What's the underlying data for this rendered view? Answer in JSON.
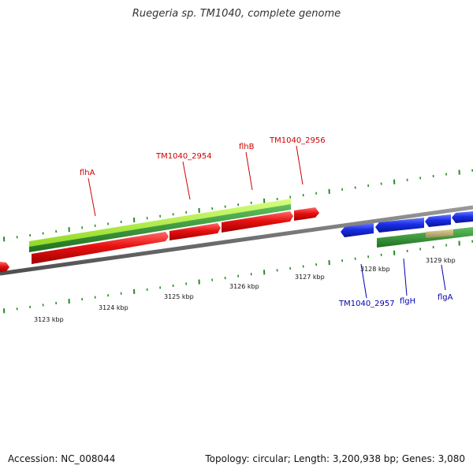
{
  "title": "Ruegeria sp. TM1040, complete genome",
  "footer": {
    "accession": "Accession: NC_008044",
    "summary": "Topology: circular; Length: 3,200,938 bp; Genes: 3,080"
  },
  "colors": {
    "forward_gene": "#e01010",
    "reverse_gene": "#1428e0",
    "cds_forward": "#33a033",
    "cds_reverse": "#2f8a2f",
    "cds_highlight": "#9ee040",
    "forward_label": "#cc0000",
    "reverse_label": "#0000b0",
    "backbone": "#8a8a8a",
    "tick": "#228b22",
    "tan_feature": "#b8a86a"
  },
  "ticks": [
    {
      "label": "3123 kbp"
    },
    {
      "label": "3124 kbp"
    },
    {
      "label": "3125 kbp"
    },
    {
      "label": "3126 kbp"
    },
    {
      "label": "3127 kbp"
    },
    {
      "label": "3128 kbp"
    },
    {
      "label": "3129 kbp"
    }
  ],
  "forward_labels": [
    {
      "text": "flhA"
    },
    {
      "text": "TM1040_2954"
    },
    {
      "text": "flhB"
    },
    {
      "text": "TM1040_2956"
    }
  ],
  "reverse_labels": [
    {
      "text": "TM1040_2957"
    },
    {
      "text": "flgH"
    },
    {
      "text": "flgA"
    }
  ]
}
